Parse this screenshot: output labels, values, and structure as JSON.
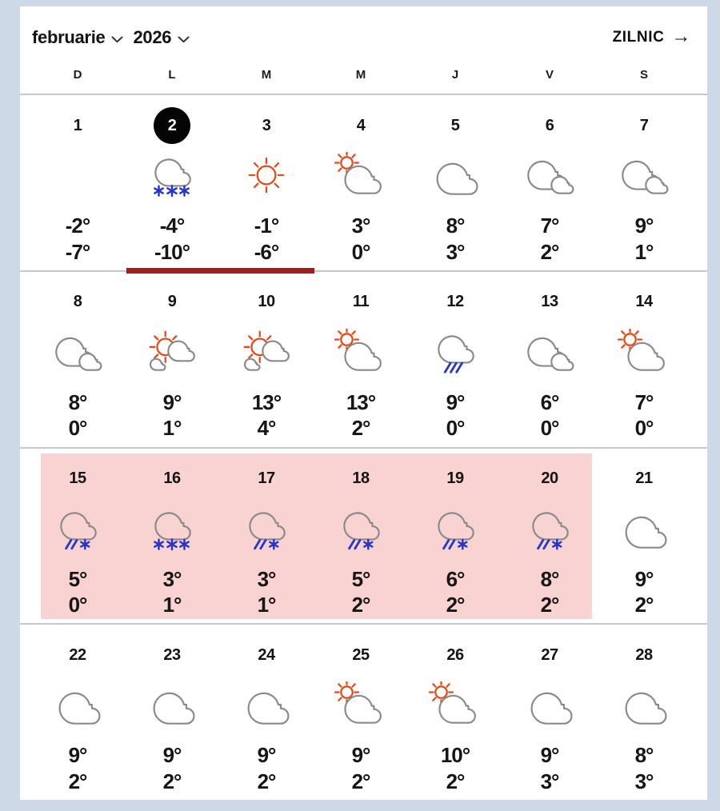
{
  "header": {
    "month": "februarie",
    "year": "2026",
    "daily_label": "ZILNIC",
    "daily_arrow": "→"
  },
  "weekdays": [
    "D",
    "L",
    "M",
    "M",
    "J",
    "V",
    "S"
  ],
  "indicators": {
    "selected_day": "2",
    "underline_span_days": [
      "2",
      "3"
    ],
    "highlighted_days": [
      "15",
      "16",
      "17",
      "18",
      "19",
      "20"
    ]
  },
  "days": [
    {
      "day": "1",
      "icon": "none",
      "high": "-2°",
      "low": "-7°"
    },
    {
      "day": "2",
      "icon": "cloud-snow",
      "high": "-4°",
      "low": "-10°",
      "selected": true
    },
    {
      "day": "3",
      "icon": "sun",
      "high": "-1°",
      "low": "-6°"
    },
    {
      "day": "4",
      "icon": "sun-cloud",
      "high": "3°",
      "low": "0°"
    },
    {
      "day": "5",
      "icon": "cloud",
      "high": "8°",
      "low": "3°"
    },
    {
      "day": "6",
      "icon": "clouds",
      "high": "7°",
      "low": "2°"
    },
    {
      "day": "7",
      "icon": "clouds",
      "high": "9°",
      "low": "1°"
    },
    {
      "day": "8",
      "icon": "clouds",
      "high": "8°",
      "low": "0°"
    },
    {
      "day": "9",
      "icon": "sun-clouds",
      "high": "9°",
      "low": "1°"
    },
    {
      "day": "10",
      "icon": "sun-clouds",
      "high": "13°",
      "low": "4°"
    },
    {
      "day": "11",
      "icon": "sun-cloud",
      "high": "13°",
      "low": "2°"
    },
    {
      "day": "12",
      "icon": "cloud-rain",
      "high": "9°",
      "low": "0°"
    },
    {
      "day": "13",
      "icon": "clouds",
      "high": "6°",
      "low": "0°"
    },
    {
      "day": "14",
      "icon": "sun-cloud",
      "high": "7°",
      "low": "0°"
    },
    {
      "day": "15",
      "icon": "cloud-sleet",
      "high": "5°",
      "low": "0°",
      "highlighted": true
    },
    {
      "day": "16",
      "icon": "cloud-snow",
      "high": "3°",
      "low": "1°",
      "highlighted": true
    },
    {
      "day": "17",
      "icon": "cloud-sleet",
      "high": "3°",
      "low": "1°",
      "highlighted": true
    },
    {
      "day": "18",
      "icon": "cloud-sleet",
      "high": "5°",
      "low": "2°",
      "highlighted": true
    },
    {
      "day": "19",
      "icon": "cloud-sleet",
      "high": "6°",
      "low": "2°",
      "highlighted": true
    },
    {
      "day": "20",
      "icon": "cloud-sleet",
      "high": "8°",
      "low": "2°",
      "highlighted": true
    },
    {
      "day": "21",
      "icon": "cloud",
      "high": "9°",
      "low": "2°"
    },
    {
      "day": "22",
      "icon": "cloud",
      "high": "9°",
      "low": "2°"
    },
    {
      "day": "23",
      "icon": "cloud",
      "high": "9°",
      "low": "2°"
    },
    {
      "day": "24",
      "icon": "cloud",
      "high": "9°",
      "low": "2°"
    },
    {
      "day": "25",
      "icon": "sun-cloud",
      "high": "9°",
      "low": "2°"
    },
    {
      "day": "26",
      "icon": "sun-cloud",
      "high": "10°",
      "low": "2°"
    },
    {
      "day": "27",
      "icon": "cloud",
      "high": "9°",
      "low": "3°"
    },
    {
      "day": "28",
      "icon": "cloud",
      "high": "8°",
      "low": "3°"
    }
  ],
  "colors": {
    "background": "#cdd9e7",
    "panel": "#ffffff",
    "text": "#161616",
    "divider": "#c8c8c8",
    "selected_day_bg": "#050505",
    "selected_day_text": "#ffffff",
    "highlight_band": "#f9d2d2",
    "selected_week_bar": "#a31c1c",
    "sun": "#e64a19",
    "cloud": "#8a8a8a",
    "precip": "#2636cc"
  }
}
